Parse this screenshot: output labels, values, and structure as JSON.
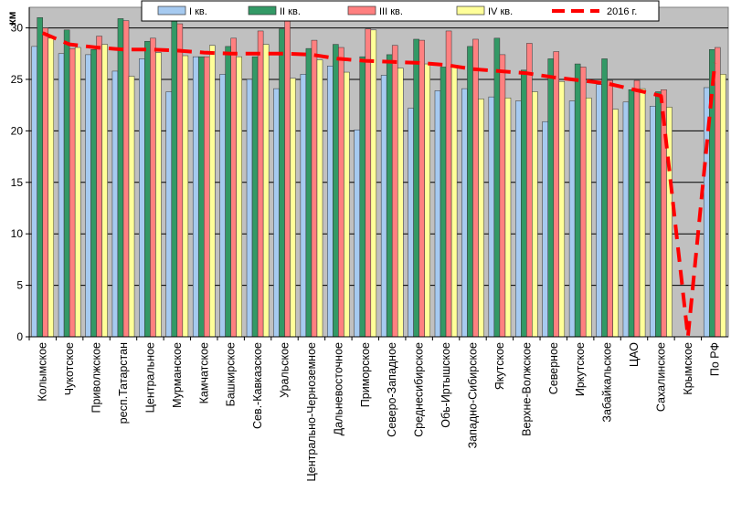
{
  "chart_data": {
    "type": "bar",
    "ylabel": "км",
    "ylim": [
      0,
      32
    ],
    "yticks": [
      0,
      5,
      10,
      15,
      20,
      25,
      30
    ],
    "grid": true,
    "legend_position": "top",
    "plot_background": "#c0c0c0",
    "categories": [
      "Колымское",
      "Чукотское",
      "Приволжское",
      "респ.Татарстан",
      "Центральное",
      "Мурманское",
      "Камчатское",
      "Башкирское",
      "Сев.-Кавказское",
      "Уральское",
      "Центрально-Черноземное",
      "Дальневосточное",
      "Приморское",
      "Северо-Западное",
      "Среднесибирское",
      "Обь-Иртышское",
      "Западно-Сибирское",
      "Якутское",
      "Верхне-Волжское",
      "Северное",
      "Иркутское",
      "Забайкальское",
      "ЦАО",
      "Сахалинское",
      "Крымское",
      "По РФ"
    ],
    "series": [
      {
        "name": "I кв.",
        "kind": "bar",
        "color": "#a6caf0",
        "values": [
          28.2,
          27.5,
          27.4,
          25.8,
          27.0,
          23.8,
          27.2,
          25.5,
          25.0,
          24.1,
          25.5,
          26.3,
          20.1,
          25.4,
          22.2,
          23.9,
          24.1,
          23.3,
          22.9,
          20.9,
          22.9,
          24.5,
          22.8,
          22.4,
          null,
          24.2
        ]
      },
      {
        "name": "II кв.",
        "kind": "bar",
        "color": "#339966",
        "values": [
          31.0,
          29.8,
          27.9,
          30.9,
          28.7,
          31.0,
          27.2,
          28.2,
          27.2,
          29.9,
          28.0,
          28.4,
          27.2,
          27.4,
          28.9,
          26.2,
          28.2,
          29.0,
          25.9,
          27.0,
          26.5,
          27.0,
          24.0,
          23.8,
          null,
          27.9
        ]
      },
      {
        "name": "III кв.",
        "kind": "bar",
        "color": "#ff8080",
        "values": [
          30.0,
          28.0,
          29.2,
          30.7,
          29.0,
          30.4,
          27.2,
          29.0,
          29.7,
          30.8,
          28.8,
          28.1,
          29.9,
          28.3,
          28.8,
          29.7,
          28.9,
          27.4,
          28.5,
          27.7,
          26.2,
          24.9,
          24.9,
          24.0,
          null,
          28.1
        ]
      },
      {
        "name": "IV кв.",
        "kind": "bar",
        "color": "#ffff99",
        "values": [
          29.0,
          28.1,
          28.4,
          25.3,
          27.6,
          27.3,
          28.3,
          27.2,
          28.4,
          25.1,
          26.9,
          25.7,
          29.8,
          26.1,
          26.5,
          26.2,
          23.1,
          23.2,
          23.8,
          24.8,
          23.2,
          22.1,
          24.1,
          22.3,
          null,
          25.5
        ]
      },
      {
        "name": "2016 г.",
        "kind": "line",
        "color": "#ff0000",
        "values": [
          29.5,
          28.4,
          28.1,
          27.9,
          27.9,
          27.8,
          27.6,
          27.5,
          27.5,
          27.5,
          27.4,
          27.0,
          26.8,
          26.7,
          26.6,
          26.4,
          26.0,
          25.8,
          25.6,
          25.2,
          24.9,
          24.6,
          24.0,
          23.4,
          0,
          26.6
        ]
      }
    ]
  }
}
